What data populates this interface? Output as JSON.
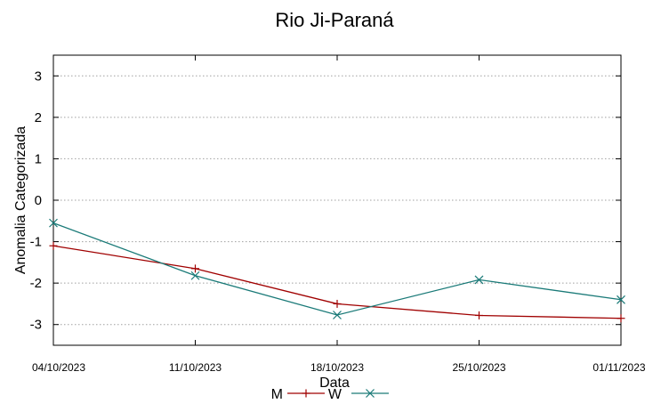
{
  "chart_data": {
    "type": "line",
    "title": "Rio Ji-Paraná",
    "xlabel": "Data",
    "ylabel": "Anomalia Categorizada",
    "x": [
      "04/10/2023",
      "11/10/2023",
      "18/10/2023",
      "25/10/2023",
      "01/11/2023"
    ],
    "xlim": [
      "04/10/2023",
      "01/11/2023"
    ],
    "ylim": [
      -3.5,
      3.5
    ],
    "yticks": [
      "3",
      "2",
      "1",
      "0",
      "-1",
      "-2",
      "-3"
    ],
    "grid": true,
    "legend": "bottom-center",
    "series": [
      {
        "name": "M",
        "color": "#a00000",
        "marker": "plus",
        "values": [
          -1.1,
          -1.65,
          -2.5,
          -2.78,
          -2.85
        ]
      },
      {
        "name": "W",
        "color": "#1a7a78",
        "marker": "cross",
        "values": [
          -0.55,
          -1.82,
          -2.77,
          -1.92,
          -2.4
        ]
      }
    ]
  }
}
